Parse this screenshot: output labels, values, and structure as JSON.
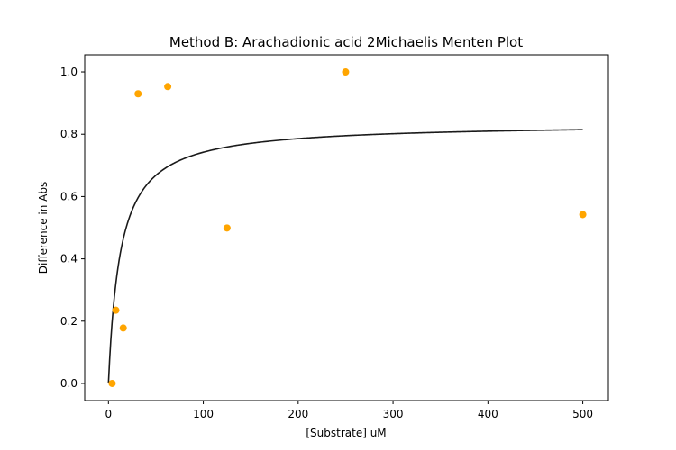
{
  "chart_data": {
    "type": "scatter",
    "title": "Method B: Arachadionic acid 2Michaelis Menten Plot",
    "xlabel": "[Substrate] uM",
    "ylabel": "Difference in Abs",
    "xlim": [
      -25,
      527
    ],
    "ylim": [
      -0.055,
      1.055
    ],
    "xticks": [
      0,
      100,
      200,
      300,
      400,
      500
    ],
    "xtick_labels": [
      "0",
      "100",
      "200",
      "300",
      "400",
      "500"
    ],
    "yticks": [
      0.0,
      0.2,
      0.4,
      0.6,
      0.8,
      1.0
    ],
    "ytick_labels": [
      "0.0",
      "0.2",
      "0.4",
      "0.6",
      "0.8",
      "1.0"
    ],
    "grid": false,
    "legend": "none",
    "series": [
      {
        "type": "scatter",
        "color": "#ffa500",
        "x": [
          3.9,
          7.8,
          15.6,
          31.25,
          62.5,
          125,
          250,
          500
        ],
        "y": [
          0.0,
          0.235,
          0.178,
          0.93,
          0.953,
          0.499,
          1.0,
          0.542
        ]
      },
      {
        "type": "line",
        "color": "#1a1a1a",
        "fit": "michaelis-menten",
        "vmax": 0.835,
        "km": 12.5,
        "x_range": [
          0,
          500
        ]
      }
    ]
  }
}
